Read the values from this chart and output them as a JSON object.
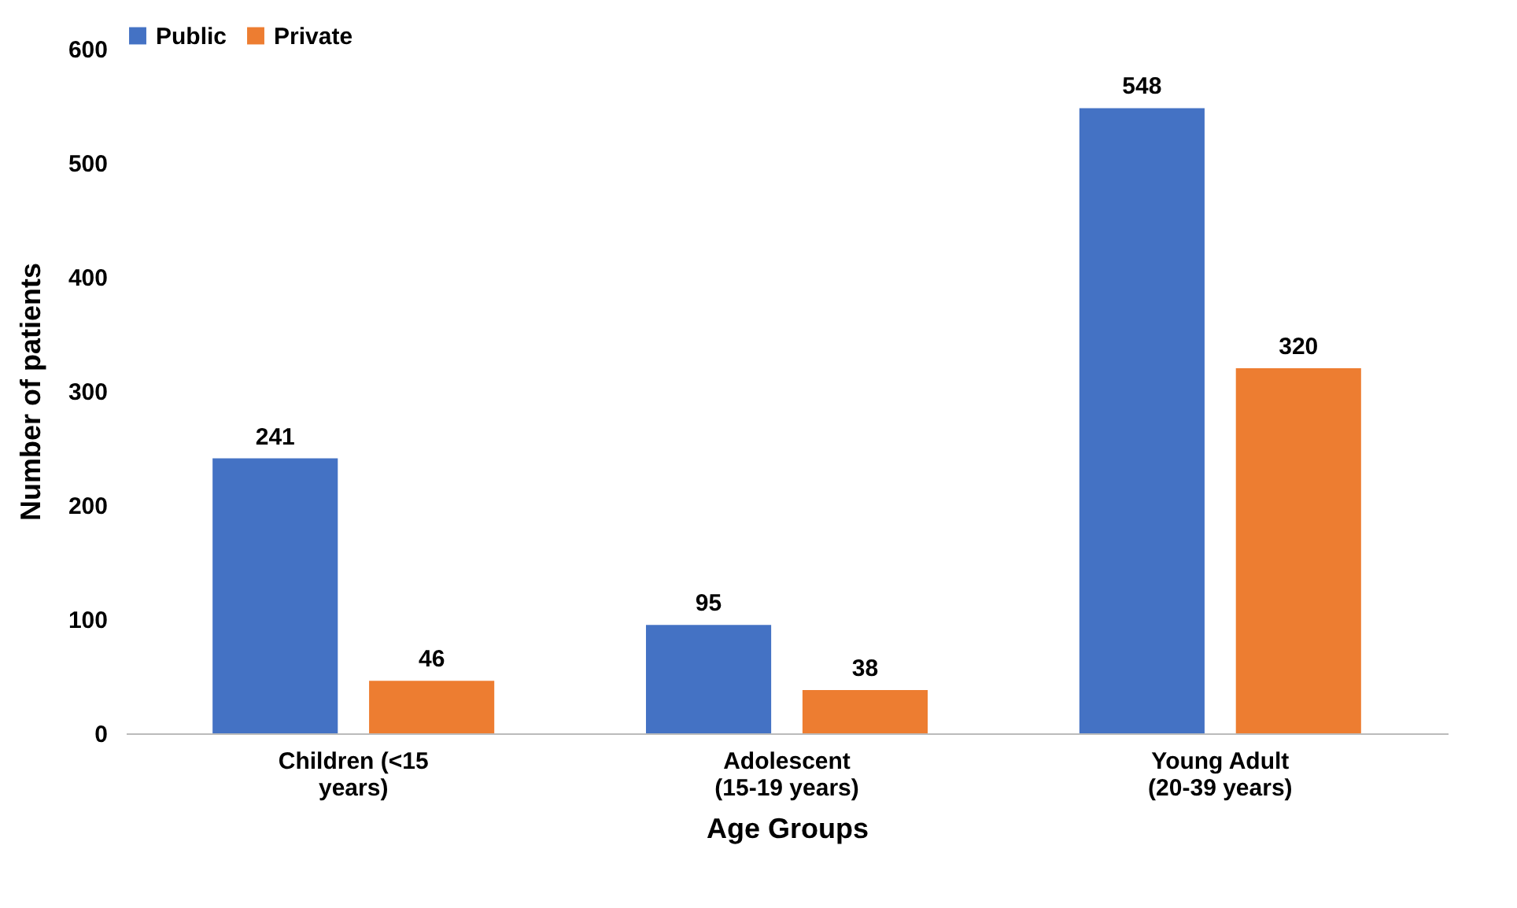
{
  "chart_data": {
    "type": "bar",
    "xlabel": "Age Groups",
    "ylabel": "Number of patients",
    "categories": [
      "Children (<15 years)",
      "Adolescent (15-19 years)",
      "Young Adult (20-39 years)"
    ],
    "series": [
      {
        "name": "Public",
        "color": "#4472c4",
        "values": [
          241,
          95,
          548
        ]
      },
      {
        "name": "Private",
        "color": "#ed7d31",
        "values": [
          46,
          38,
          320
        ]
      }
    ],
    "ylim": [
      0,
      600
    ],
    "yticks": [
      0,
      100,
      200,
      300,
      400,
      500,
      600
    ],
    "grid": false,
    "legend": "top",
    "data_labels": true
  }
}
